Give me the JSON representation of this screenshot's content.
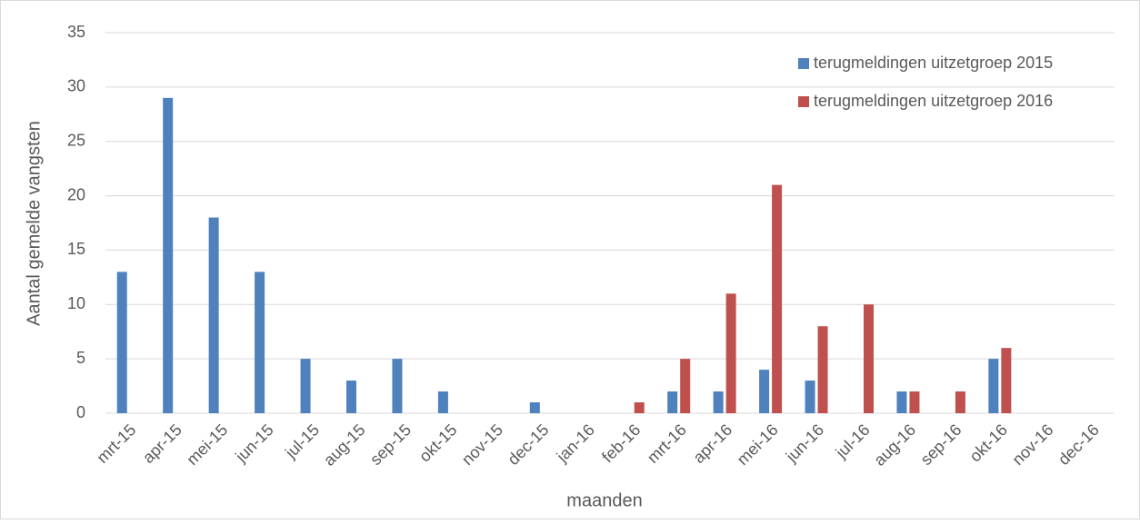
{
  "chart_data": {
    "type": "bar",
    "y_label": "Aantal gemelde vangsten",
    "x_label": "maanden",
    "categories": [
      "mrt-15",
      "apr-15",
      "mei-15",
      "jun-15",
      "jul-15",
      "aug-15",
      "sep-15",
      "okt-15",
      "nov-15",
      "dec-15",
      "jan-16",
      "feb-16",
      "mrt-16",
      "apr-16",
      "mei-16",
      "jun-16",
      "jul-16",
      "aug-16",
      "sep-16",
      "okt-16",
      "nov-16",
      "dec-16"
    ],
    "series": [
      {
        "name": "terugmeldingen uitzetgroep 2015",
        "color": "#4f81bd",
        "values": [
          13,
          29,
          18,
          13,
          5,
          3,
          5,
          2,
          0,
          1,
          0,
          0,
          2,
          2,
          4,
          3,
          0,
          2,
          0,
          5,
          0,
          0
        ]
      },
      {
        "name": "terugmeldingen uitzetgroep 2016",
        "color": "#c0504d",
        "values": [
          0,
          0,
          0,
          0,
          0,
          0,
          0,
          0,
          0,
          0,
          0,
          1,
          5,
          11,
          21,
          8,
          10,
          2,
          2,
          6,
          0,
          0
        ]
      }
    ],
    "ylim": [
      0,
      35
    ],
    "yticks": [
      0,
      5,
      10,
      15,
      20,
      25,
      30,
      35
    ],
    "grid": true,
    "legend": "top-right"
  }
}
